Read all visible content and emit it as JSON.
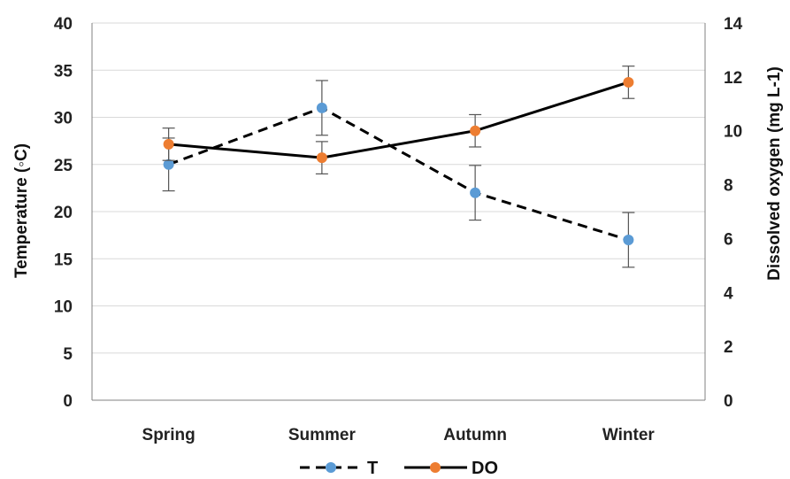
{
  "chart_data": {
    "type": "line",
    "categories": [
      "Spring",
      "Summer",
      "Autumn",
      "Winter"
    ],
    "y_left": {
      "label": "Temperature (◦C)",
      "lim": [
        0,
        40
      ],
      "ticks": [
        0,
        5,
        10,
        15,
        20,
        25,
        30,
        35,
        40
      ]
    },
    "y_right": {
      "label": "Dissolved oxygen (mg L-1)",
      "lim": [
        0,
        14
      ],
      "ticks": [
        0,
        2,
        4,
        6,
        8,
        10,
        12,
        14
      ]
    },
    "series": [
      {
        "name": "T",
        "axis": "left",
        "style": "dashed",
        "color": "#000000",
        "marker_color": "#5b9bd5",
        "values": [
          25,
          31,
          22,
          17
        ],
        "errors": [
          2.8,
          2.9,
          2.9,
          2.9
        ]
      },
      {
        "name": "DO",
        "axis": "right",
        "style": "solid",
        "color": "#000000",
        "marker_color": "#ed7d31",
        "values": [
          9.5,
          9.0,
          10.0,
          11.8
        ],
        "errors": [
          0.6,
          0.6,
          0.6,
          0.6
        ]
      }
    ],
    "grid": true,
    "legend_position": "bottom"
  }
}
